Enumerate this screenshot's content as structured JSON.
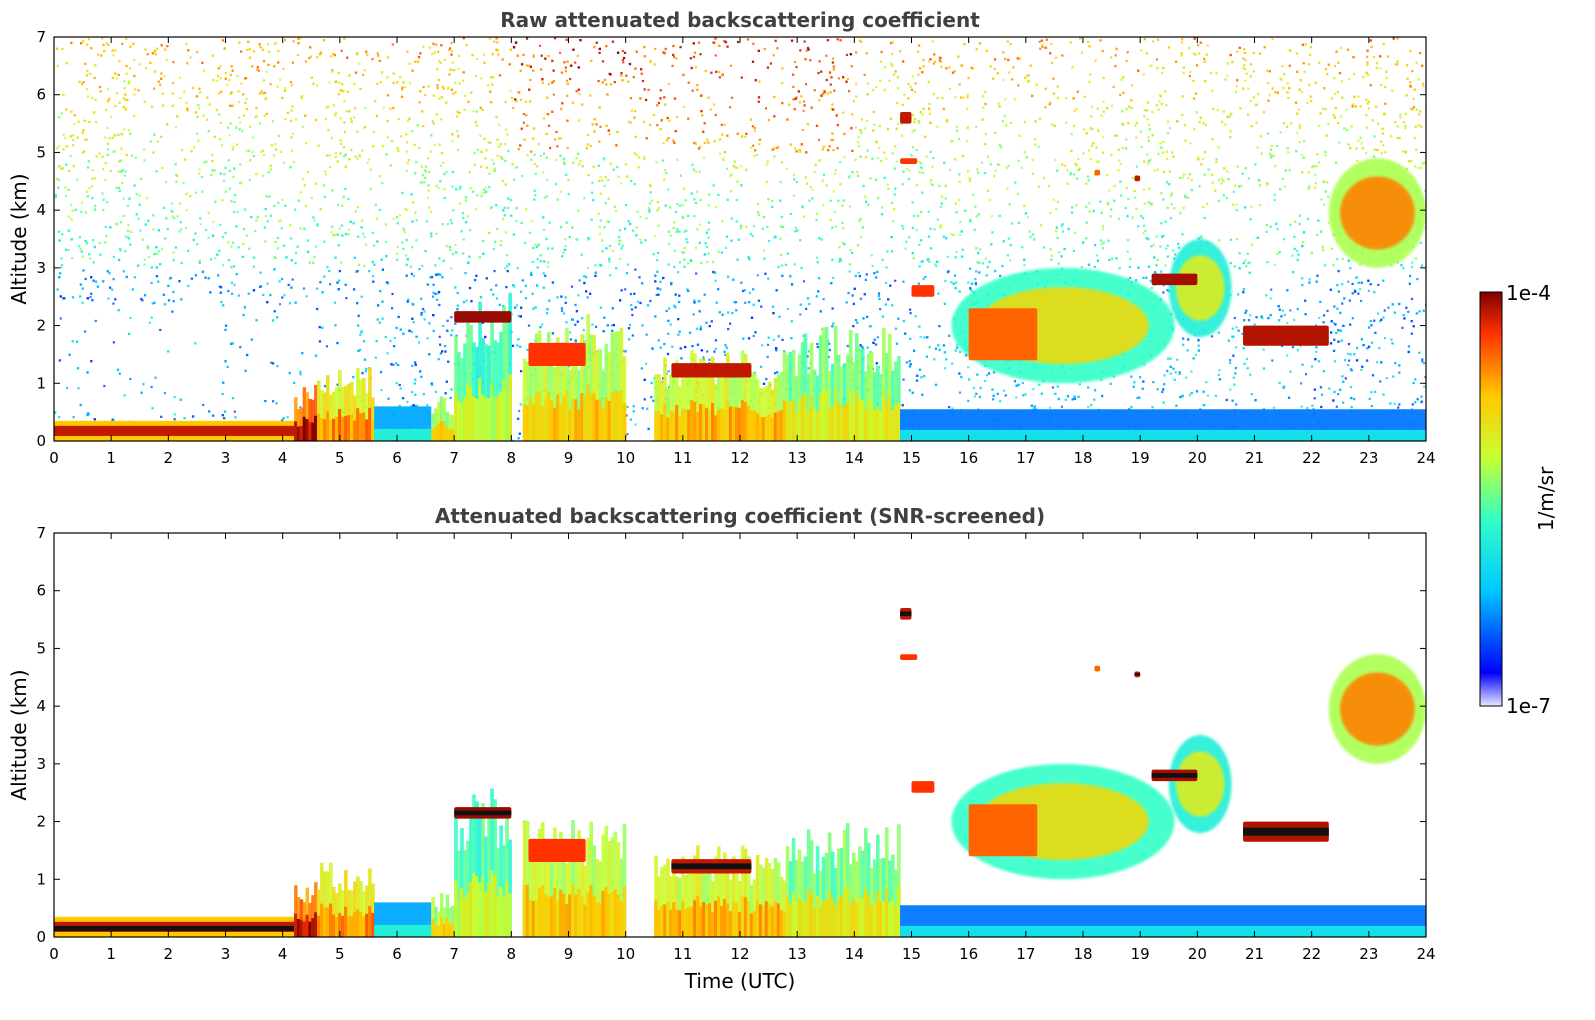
{
  "chart_data": [
    {
      "type": "heatmap",
      "title": "Raw attenuated backscattering coefficient",
      "xlabel": "",
      "ylabel": "Altitude (km)",
      "xlim": [
        0,
        24
      ],
      "ylim": [
        0,
        7
      ],
      "x_ticks": [
        "0",
        "1",
        "2",
        "3",
        "4",
        "5",
        "6",
        "7",
        "8",
        "9",
        "10",
        "11",
        "12",
        "13",
        "14",
        "15",
        "16",
        "17",
        "18",
        "19",
        "20",
        "21",
        "22",
        "23",
        "24"
      ],
      "y_ticks": [
        "0",
        "1",
        "2",
        "3",
        "4",
        "5",
        "6",
        "7"
      ],
      "screened": false,
      "features": [
        {
          "kind": "boundary_layer",
          "x": [
            0,
            4.5
          ],
          "alt": [
            0,
            0.35
          ],
          "level": 0.95
        },
        {
          "kind": "aerosol_column",
          "x": [
            4.2,
            4.6
          ],
          "alt": [
            0,
            1.0
          ],
          "level": 0.92
        },
        {
          "kind": "aerosol_column",
          "x": [
            4.6,
            5.6
          ],
          "alt": [
            0,
            1.3
          ],
          "level": 0.75
        },
        {
          "kind": "low_signal",
          "x": [
            5.6,
            6.6
          ],
          "alt": [
            0,
            0.6
          ],
          "level": 0.25
        },
        {
          "kind": "aerosol_column",
          "x": [
            6.6,
            7.0
          ],
          "alt": [
            0,
            0.8
          ],
          "level": 0.65
        },
        {
          "kind": "aerosol_column",
          "x": [
            7.0,
            8.0
          ],
          "alt": [
            0,
            2.6
          ],
          "level": 0.55
        },
        {
          "kind": "cloud",
          "x": [
            7.0,
            8.0
          ],
          "alt": [
            2.05,
            2.25
          ],
          "level": 0.98
        },
        {
          "kind": "aerosol_column",
          "x": [
            8.2,
            10.0
          ],
          "alt": [
            0,
            2.2
          ],
          "level": 0.68
        },
        {
          "kind": "cloud",
          "x": [
            8.3,
            9.3
          ],
          "alt": [
            1.3,
            1.7
          ],
          "level": 0.9
        },
        {
          "kind": "aerosol_column",
          "x": [
            10.5,
            12.8
          ],
          "alt": [
            0,
            1.6
          ],
          "level": 0.7
        },
        {
          "kind": "cloud",
          "x": [
            10.8,
            12.2
          ],
          "alt": [
            1.1,
            1.35
          ],
          "level": 0.95
        },
        {
          "kind": "aerosol_column",
          "x": [
            12.8,
            14.8
          ],
          "alt": [
            0,
            2.0
          ],
          "level": 0.6
        },
        {
          "kind": "low_signal",
          "x": [
            14.8,
            24
          ],
          "alt": [
            0,
            0.55
          ],
          "level": 0.2
        },
        {
          "kind": "cloud",
          "x": [
            14.8,
            15.0
          ],
          "alt": [
            5.5,
            5.7
          ],
          "level": 0.95
        },
        {
          "kind": "cloud",
          "x": [
            14.8,
            15.1
          ],
          "alt": [
            4.8,
            4.9
          ],
          "level": 0.9
        },
        {
          "kind": "cloud",
          "x": [
            15.0,
            15.4
          ],
          "alt": [
            2.5,
            2.7
          ],
          "level": 0.9
        },
        {
          "kind": "aerosol_layer",
          "x": [
            15.7,
            19.6
          ],
          "alt": [
            1.0,
            3.0
          ],
          "level": 0.6
        },
        {
          "kind": "cloud",
          "x": [
            16.0,
            17.2
          ],
          "alt": [
            1.4,
            2.3
          ],
          "level": 0.85
        },
        {
          "kind": "aerosol_layer",
          "x": [
            19.5,
            20.6
          ],
          "alt": [
            1.8,
            3.5
          ],
          "level": 0.55
        },
        {
          "kind": "cloud",
          "x": [
            19.2,
            20.0
          ],
          "alt": [
            2.7,
            2.9
          ],
          "level": 0.97
        },
        {
          "kind": "cloud",
          "x": [
            20.8,
            22.3
          ],
          "alt": [
            1.65,
            2.0
          ],
          "level": 0.96
        },
        {
          "kind": "aerosol_layer",
          "x": [
            22.3,
            24.0
          ],
          "alt": [
            3.0,
            4.9
          ],
          "level": 0.72
        },
        {
          "kind": "cloud",
          "x": [
            18.2,
            18.3
          ],
          "alt": [
            4.6,
            4.7
          ],
          "level": 0.85
        },
        {
          "kind": "cloud",
          "x": [
            18.9,
            19.0
          ],
          "alt": [
            4.5,
            4.6
          ],
          "level": 0.95
        }
      ]
    },
    {
      "type": "heatmap",
      "title": "Attenuated backscattering coefficient (SNR-screened)",
      "xlabel": "Time (UTC)",
      "ylabel": "Altitude (km)",
      "xlim": [
        0,
        24
      ],
      "ylim": [
        0,
        7
      ],
      "x_ticks": [
        "0",
        "1",
        "2",
        "3",
        "4",
        "5",
        "6",
        "7",
        "8",
        "9",
        "10",
        "11",
        "12",
        "13",
        "14",
        "15",
        "16",
        "17",
        "18",
        "19",
        "20",
        "21",
        "22",
        "23",
        "24"
      ],
      "y_ticks": [
        "0",
        "1",
        "2",
        "3",
        "4",
        "5",
        "6",
        "7"
      ],
      "screened": true,
      "features": [
        {
          "kind": "boundary_layer",
          "x": [
            0,
            4.5
          ],
          "alt": [
            0,
            0.35
          ],
          "level": 0.95
        },
        {
          "kind": "aerosol_column",
          "x": [
            4.2,
            4.6
          ],
          "alt": [
            0,
            1.0
          ],
          "level": 0.92
        },
        {
          "kind": "aerosol_column",
          "x": [
            4.6,
            5.6
          ],
          "alt": [
            0,
            1.3
          ],
          "level": 0.75
        },
        {
          "kind": "low_signal",
          "x": [
            5.6,
            6.6
          ],
          "alt": [
            0,
            0.6
          ],
          "level": 0.25
        },
        {
          "kind": "aerosol_column",
          "x": [
            6.6,
            7.0
          ],
          "alt": [
            0,
            0.8
          ],
          "level": 0.65
        },
        {
          "kind": "aerosol_column",
          "x": [
            7.0,
            8.0
          ],
          "alt": [
            0,
            2.6
          ],
          "level": 0.55
        },
        {
          "kind": "cloud",
          "x": [
            7.0,
            8.0
          ],
          "alt": [
            2.05,
            2.25
          ],
          "level": 0.98
        },
        {
          "kind": "aerosol_column",
          "x": [
            8.2,
            10.0
          ],
          "alt": [
            0,
            2.2
          ],
          "level": 0.68
        },
        {
          "kind": "cloud",
          "x": [
            8.3,
            9.3
          ],
          "alt": [
            1.3,
            1.7
          ],
          "level": 0.9
        },
        {
          "kind": "aerosol_column",
          "x": [
            10.5,
            12.8
          ],
          "alt": [
            0,
            1.6
          ],
          "level": 0.7
        },
        {
          "kind": "cloud",
          "x": [
            10.8,
            12.2
          ],
          "alt": [
            1.1,
            1.35
          ],
          "level": 0.95
        },
        {
          "kind": "aerosol_column",
          "x": [
            12.8,
            14.8
          ],
          "alt": [
            0,
            2.0
          ],
          "level": 0.6
        },
        {
          "kind": "low_signal",
          "x": [
            14.8,
            24
          ],
          "alt": [
            0,
            0.55
          ],
          "level": 0.2
        },
        {
          "kind": "cloud",
          "x": [
            14.8,
            15.0
          ],
          "alt": [
            5.5,
            5.7
          ],
          "level": 0.95
        },
        {
          "kind": "cloud",
          "x": [
            14.8,
            15.1
          ],
          "alt": [
            4.8,
            4.9
          ],
          "level": 0.9
        },
        {
          "kind": "cloud",
          "x": [
            15.0,
            15.4
          ],
          "alt": [
            2.5,
            2.7
          ],
          "level": 0.9
        },
        {
          "kind": "aerosol_layer",
          "x": [
            15.7,
            19.6
          ],
          "alt": [
            1.0,
            3.0
          ],
          "level": 0.6
        },
        {
          "kind": "cloud",
          "x": [
            16.0,
            17.2
          ],
          "alt": [
            1.4,
            2.3
          ],
          "level": 0.85
        },
        {
          "kind": "aerosol_layer",
          "x": [
            19.5,
            20.6
          ],
          "alt": [
            1.8,
            3.5
          ],
          "level": 0.55
        },
        {
          "kind": "cloud",
          "x": [
            19.2,
            20.0
          ],
          "alt": [
            2.7,
            2.9
          ],
          "level": 0.97
        },
        {
          "kind": "cloud",
          "x": [
            20.8,
            22.3
          ],
          "alt": [
            1.65,
            2.0
          ],
          "level": 0.96
        },
        {
          "kind": "aerosol_layer",
          "x": [
            22.3,
            24.0
          ],
          "alt": [
            3.0,
            4.9
          ],
          "level": 0.72
        },
        {
          "kind": "cloud",
          "x": [
            18.2,
            18.3
          ],
          "alt": [
            4.6,
            4.7
          ],
          "level": 0.85
        },
        {
          "kind": "cloud",
          "x": [
            18.9,
            19.0
          ],
          "alt": [
            4.5,
            4.6
          ],
          "level": 0.95
        }
      ]
    }
  ],
  "colorbar": {
    "max_label": "1e-4",
    "min_label": "1e-7",
    "unit_label": "1/m/sr",
    "colormap": "jet",
    "colors": [
      "#e8e8ff",
      "#0000ff",
      "#00c8ff",
      "#32ffc8",
      "#c8ff32",
      "#ffc800",
      "#ff3200",
      "#800000"
    ]
  }
}
